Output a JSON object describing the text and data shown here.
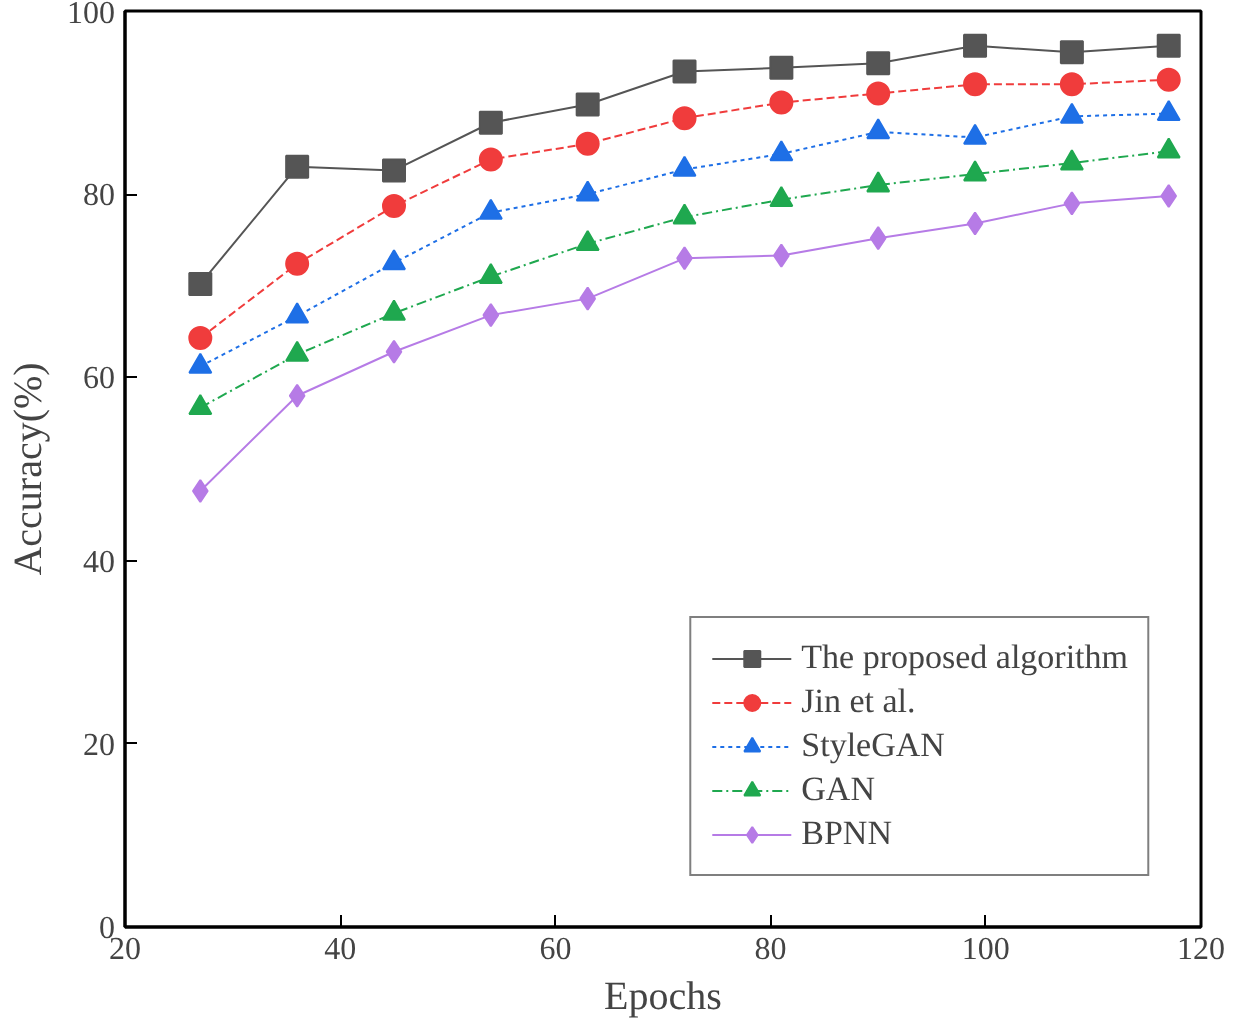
{
  "chart_data": {
    "type": "line",
    "xlabel": "Epochs",
    "ylabel": "Accuracy(%)",
    "x": [
      27,
      36,
      45,
      54,
      63,
      72,
      81,
      90,
      99,
      108,
      117
    ],
    "xlim": [
      20,
      120
    ],
    "xticks": [
      20,
      40,
      60,
      80,
      100,
      120
    ],
    "ylim": [
      0,
      100
    ],
    "yticks": [
      0,
      20,
      40,
      60,
      80,
      100
    ],
    "grid": false,
    "legend": "bottom right",
    "series": [
      {
        "name": "The proposed algorithm",
        "color": "#555555",
        "marker": "square",
        "line_style": "solid",
        "values": [
          70.2,
          83,
          82.6,
          87.8,
          89.8,
          93.4,
          93.8,
          94.3,
          96.2,
          95.5,
          96.2
        ]
      },
      {
        "name": "Jin et al.",
        "color": "#f03c3c",
        "marker": "circle",
        "line_style": "dashed",
        "values": [
          64.3,
          72.4,
          78.7,
          83.8,
          85.5,
          88.3,
          90,
          91,
          92,
          92,
          92.5
        ]
      },
      {
        "name": "StyleGAN",
        "color": "#1e6fe6",
        "marker": "triangle",
        "line_style": "dotted",
        "values": [
          61.2,
          66.7,
          72.5,
          78,
          80,
          82.7,
          84.4,
          86.8,
          86.2,
          88.5,
          88.8
        ]
      },
      {
        "name": "GAN",
        "color": "#1fa84f",
        "marker": "triangle",
        "line_style": "dashdot",
        "values": [
          56.7,
          62.5,
          67,
          71,
          74.6,
          77.5,
          79.4,
          81,
          82.2,
          83.4,
          84.7
        ]
      },
      {
        "name": "BPNN",
        "color": "#b67be6",
        "marker": "diamond",
        "line_style": "solid",
        "values": [
          47.6,
          58,
          62.8,
          66.8,
          68.6,
          73,
          73.3,
          75.2,
          76.8,
          79,
          79.8
        ]
      }
    ]
  }
}
